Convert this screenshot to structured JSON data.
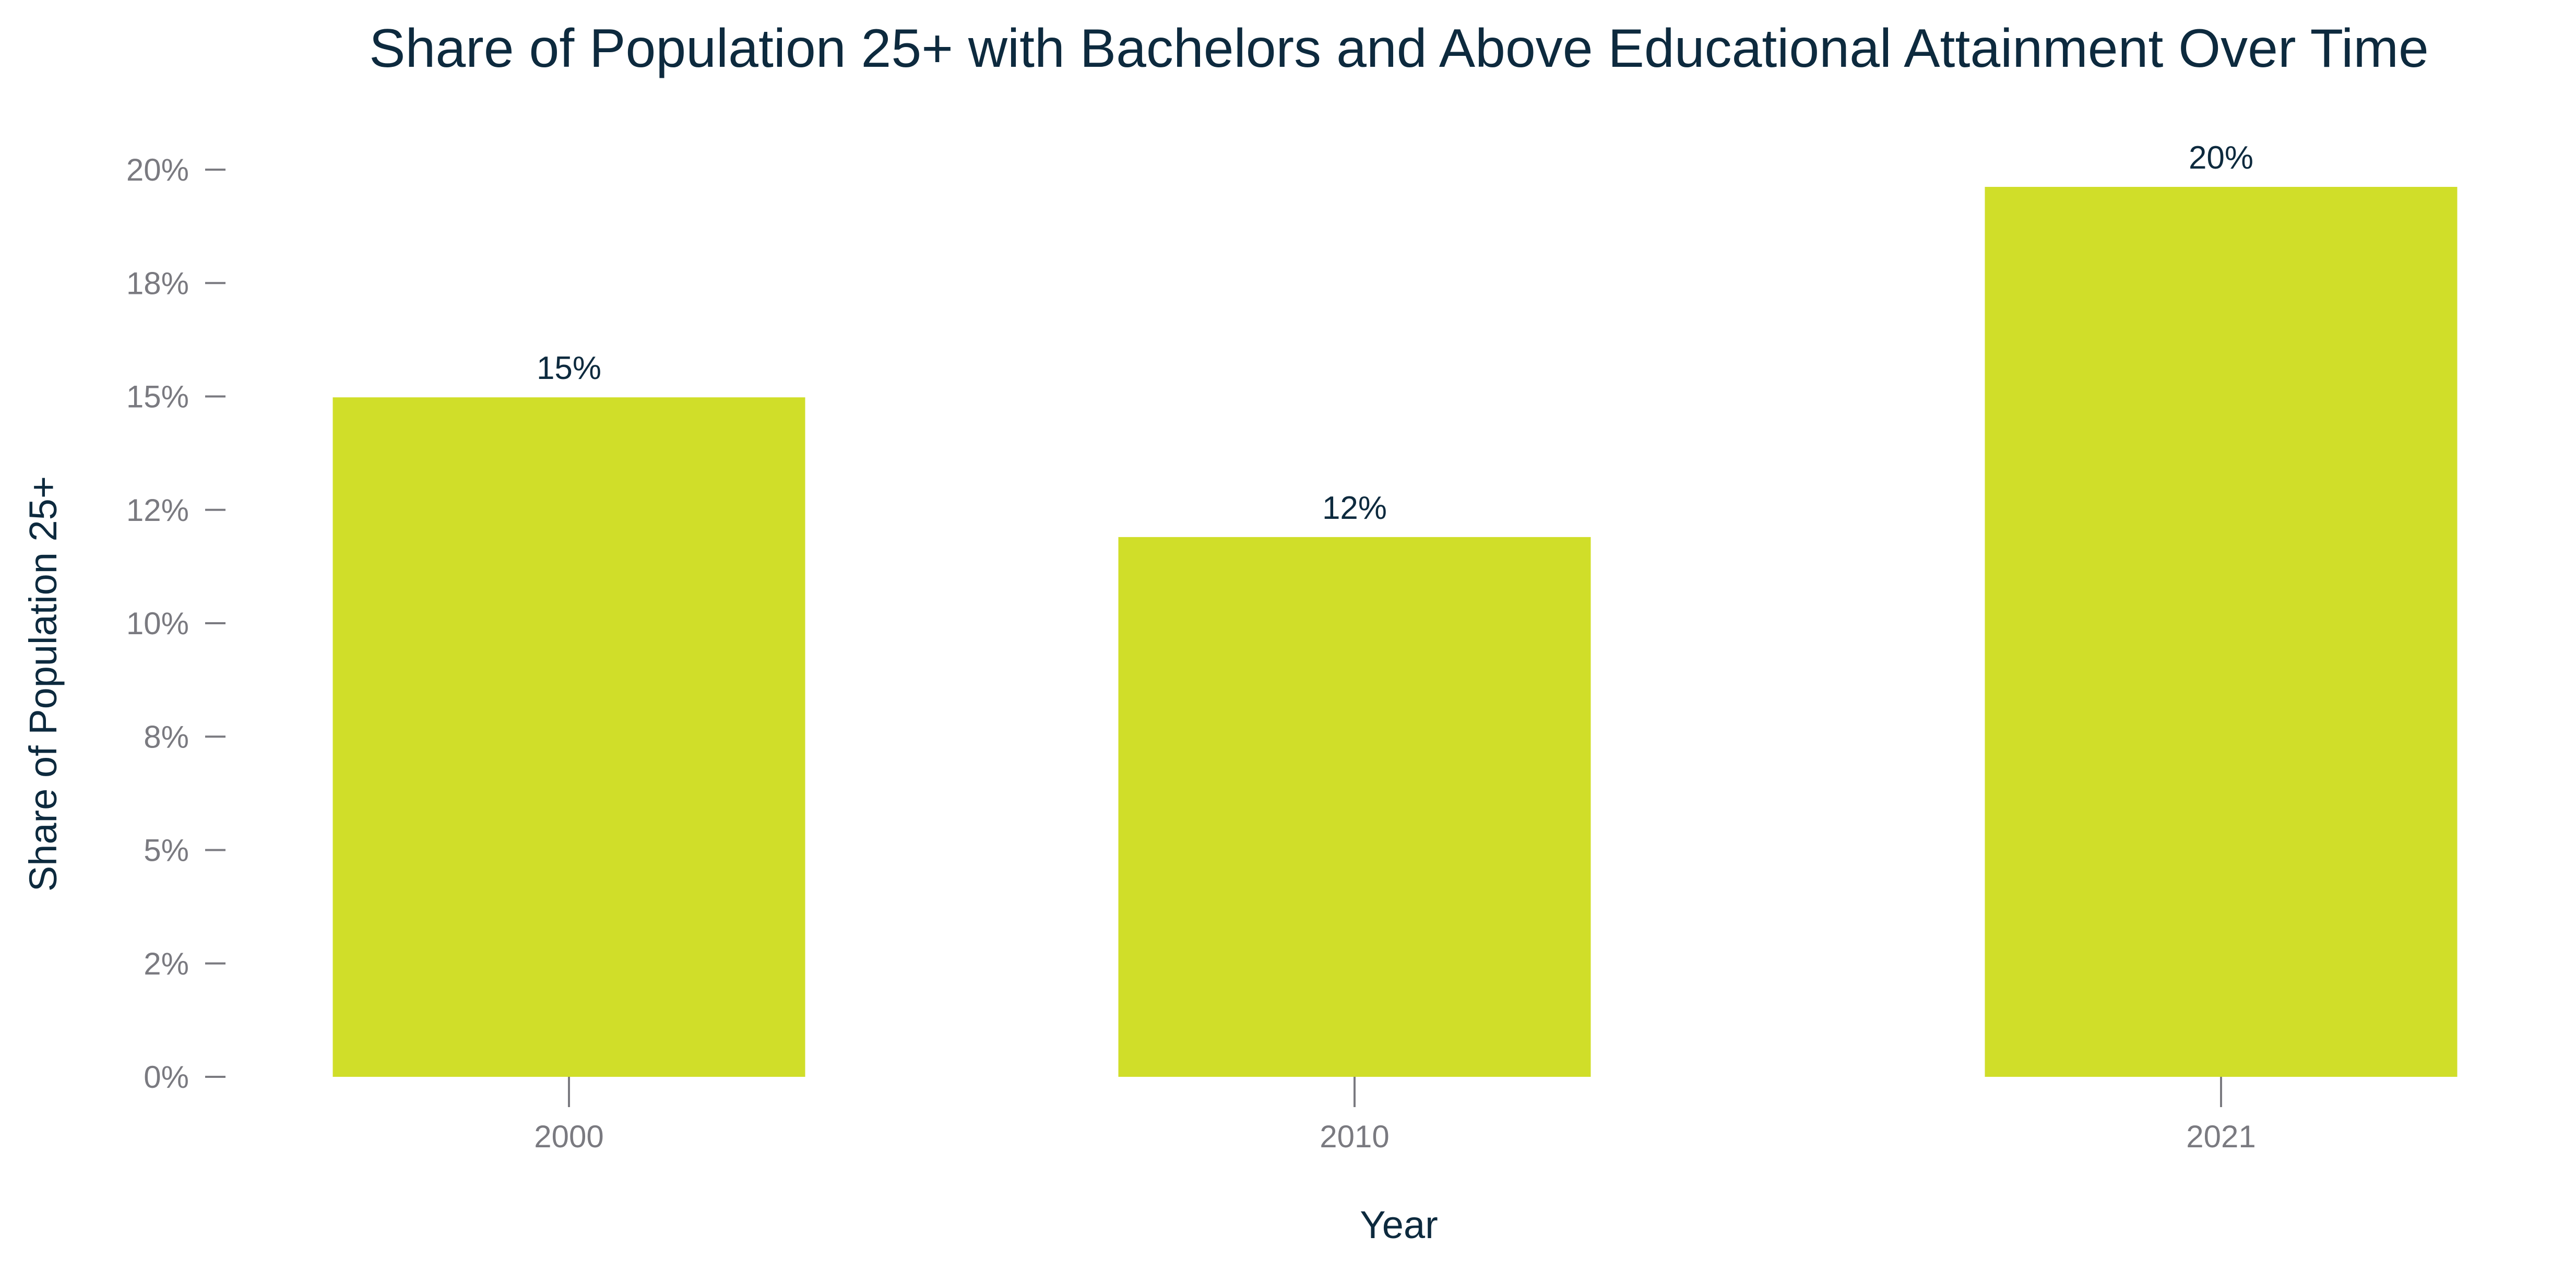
{
  "chart_data": {
    "type": "bar",
    "title": "Share of Population 25+ with Bachelors and Above Educational Attainment Over Time",
    "xlabel": "Year",
    "ylabel": "Share of Population 25+",
    "categories": [
      "2000",
      "2010",
      "2021"
    ],
    "values": [
      14.98,
      11.9,
      19.62
    ],
    "data_labels": [
      "15%",
      "12%",
      "20%"
    ],
    "y_ticks": [
      0,
      2.5,
      5,
      7.5,
      10,
      12.5,
      15,
      17.5,
      20
    ],
    "y_tick_labels": [
      "0%",
      "2%",
      "5%",
      "8%",
      "10%",
      "12%",
      "15%",
      "18%",
      "20%"
    ],
    "ylim": [
      0,
      20
    ],
    "grid": false,
    "legend": "none",
    "bar_color": "#d0de29",
    "text_color": "#0d2a3e",
    "tick_color": "#7a7a80"
  }
}
